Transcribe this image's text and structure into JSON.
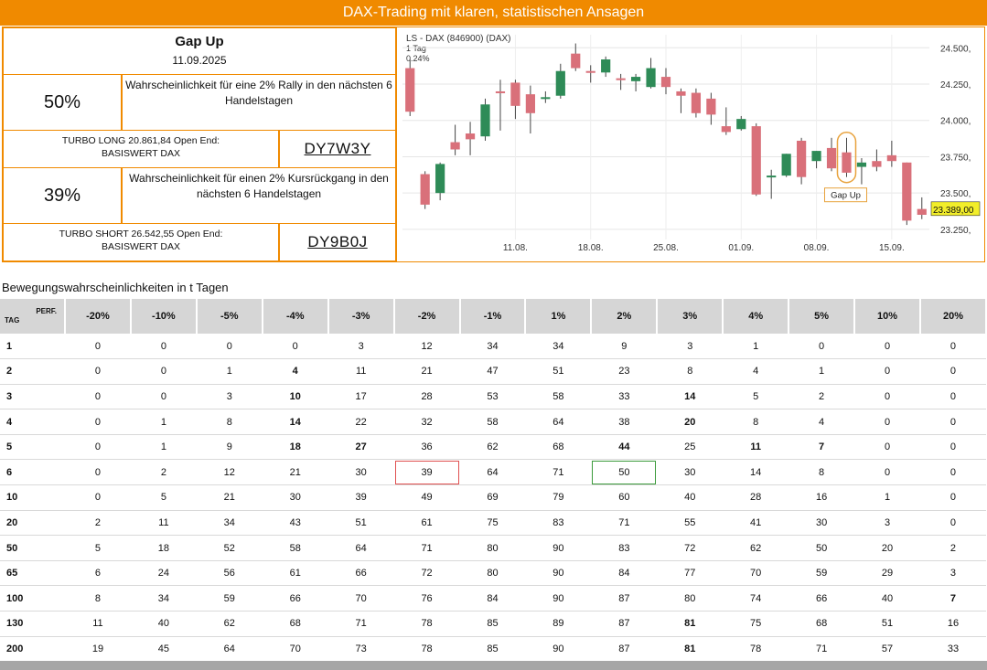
{
  "banner": {
    "title": "DAX-Trading mit klaren, statistischen Ansagen",
    "color": "#f08a00"
  },
  "panel": {
    "title": "Gap Up",
    "date": "11.09.2025",
    "up_pct": "50%",
    "up_desc": "Wahrscheinlichkeit für eine 2% Rally in den nächsten 6 Handelstagen",
    "long_text_1": "TURBO LONG 20.861,84 Open End:",
    "long_text_2": "BASISWERT DAX",
    "long_code": "DY7W3Y",
    "down_pct": "39%",
    "down_desc": "Wahrscheinlichkeit für einen 2% Kursrückgang in den nächsten 6 Handelstagen",
    "short_text_1": "TURBO SHORT 26.542,55 Open End:",
    "short_text_2": "BASISWERT DAX",
    "short_code": "DY9B0J"
  },
  "chart_data": {
    "type": "candlestick",
    "header_1": "LS - DAX (846900) (DAX)",
    "header_2": "1 Tag",
    "header_3": "0.24%",
    "y_ticks": [
      "24.500,",
      "24.250,",
      "24.000,",
      "23.750,",
      "23.500,",
      "23.250,"
    ],
    "y_tick_values": [
      24500,
      24250,
      24000,
      23750,
      23500,
      23250
    ],
    "ylim": [
      23180,
      24590
    ],
    "x_ticks": [
      "11.08.",
      "18.08.",
      "25.08.",
      "01.09.",
      "08.09.",
      "15.09."
    ],
    "x_tick_index": [
      7,
      12,
      17,
      22,
      27,
      32
    ],
    "last_price_label": "23.389,00",
    "annotation": "Gap Up",
    "annotation_index": 29,
    "up_color": "#2e8b57",
    "down_color": "#d9707a",
    "candles": [
      {
        "o": 24360,
        "h": 24420,
        "l": 24030,
        "c": 24060
      },
      {
        "o": 23630,
        "h": 23650,
        "l": 23390,
        "c": 23420
      },
      {
        "o": 23500,
        "h": 23710,
        "l": 23450,
        "c": 23700
      },
      {
        "o": 23850,
        "h": 23970,
        "l": 23760,
        "c": 23800
      },
      {
        "o": 23910,
        "h": 23990,
        "l": 23760,
        "c": 23870
      },
      {
        "o": 23890,
        "h": 24150,
        "l": 23860,
        "c": 24110
      },
      {
        "o": 24200,
        "h": 24280,
        "l": 23930,
        "c": 24190
      },
      {
        "o": 24260,
        "h": 24280,
        "l": 24010,
        "c": 24100
      },
      {
        "o": 24180,
        "h": 24240,
        "l": 23910,
        "c": 24050
      },
      {
        "o": 24150,
        "h": 24200,
        "l": 24120,
        "c": 24160
      },
      {
        "o": 24170,
        "h": 24390,
        "l": 24150,
        "c": 24340
      },
      {
        "o": 24460,
        "h": 24530,
        "l": 24340,
        "c": 24360
      },
      {
        "o": 24340,
        "h": 24380,
        "l": 24260,
        "c": 24330
      },
      {
        "o": 24330,
        "h": 24440,
        "l": 24300,
        "c": 24420
      },
      {
        "o": 24290,
        "h": 24320,
        "l": 24210,
        "c": 24280
      },
      {
        "o": 24270,
        "h": 24320,
        "l": 24200,
        "c": 24300
      },
      {
        "o": 24230,
        "h": 24430,
        "l": 24220,
        "c": 24360
      },
      {
        "o": 24300,
        "h": 24360,
        "l": 24180,
        "c": 24230
      },
      {
        "o": 24200,
        "h": 24220,
        "l": 24050,
        "c": 24170
      },
      {
        "o": 24190,
        "h": 24220,
        "l": 24020,
        "c": 24050
      },
      {
        "o": 24150,
        "h": 24190,
        "l": 23970,
        "c": 24040
      },
      {
        "o": 23960,
        "h": 24090,
        "l": 23900,
        "c": 23920
      },
      {
        "o": 23940,
        "h": 24030,
        "l": 23930,
        "c": 24010
      },
      {
        "o": 23960,
        "h": 23980,
        "l": 23480,
        "c": 23490
      },
      {
        "o": 23610,
        "h": 23660,
        "l": 23460,
        "c": 23620
      },
      {
        "o": 23620,
        "h": 23770,
        "l": 23610,
        "c": 23770
      },
      {
        "o": 23860,
        "h": 23880,
        "l": 23560,
        "c": 23610
      },
      {
        "o": 23720,
        "h": 23790,
        "l": 23670,
        "c": 23790
      },
      {
        "o": 23810,
        "h": 23880,
        "l": 23650,
        "c": 23670
      },
      {
        "o": 23780,
        "h": 23880,
        "l": 23610,
        "c": 23640
      },
      {
        "o": 23680,
        "h": 23740,
        "l": 23560,
        "c": 23710
      },
      {
        "o": 23720,
        "h": 23800,
        "l": 23650,
        "c": 23680
      },
      {
        "o": 23760,
        "h": 23860,
        "l": 23680,
        "c": 23720
      },
      {
        "o": 23710,
        "h": 23710,
        "l": 23280,
        "c": 23310
      },
      {
        "o": 23390,
        "h": 23470,
        "l": 23320,
        "c": 23350
      }
    ]
  },
  "table": {
    "section_label": "Bewegungswahrscheinlichkeiten in t Tagen",
    "corner_perf": "PERF.",
    "corner_tag": "TAG",
    "headers": [
      "-20%",
      "-10%",
      "-5%",
      "-4%",
      "-3%",
      "-2%",
      "-1%",
      "1%",
      "2%",
      "3%",
      "4%",
      "5%",
      "10%",
      "20%"
    ],
    "rows": [
      {
        "tag": "1",
        "values": [
          "0",
          "0",
          "0",
          "0",
          "3",
          "12",
          "34",
          "34",
          "9",
          "3",
          "1",
          "0",
          "0",
          "0"
        ]
      },
      {
        "tag": "2",
        "values": [
          "0",
          "0",
          "1",
          "4",
          "11",
          "21",
          "47",
          "51",
          "23",
          "8",
          "4",
          "1",
          "0",
          "0"
        ]
      },
      {
        "tag": "3",
        "values": [
          "0",
          "0",
          "3",
          "10",
          "17",
          "28",
          "53",
          "58",
          "33",
          "14",
          "5",
          "2",
          "0",
          "0"
        ]
      },
      {
        "tag": "4",
        "values": [
          "0",
          "1",
          "8",
          "14",
          "22",
          "32",
          "58",
          "64",
          "38",
          "20",
          "8",
          "4",
          "0",
          "0"
        ]
      },
      {
        "tag": "5",
        "values": [
          "0",
          "1",
          "9",
          "18",
          "27",
          "36",
          "62",
          "68",
          "44",
          "25",
          "11",
          "7",
          "0",
          "0"
        ]
      },
      {
        "tag": "6",
        "values": [
          "0",
          "2",
          "12",
          "21",
          "30",
          "39",
          "64",
          "71",
          "50",
          "30",
          "14",
          "8",
          "0",
          "0"
        ]
      },
      {
        "tag": "10",
        "values": [
          "0",
          "5",
          "21",
          "30",
          "39",
          "49",
          "69",
          "79",
          "60",
          "40",
          "28",
          "16",
          "1",
          "0"
        ]
      },
      {
        "tag": "20",
        "values": [
          "2",
          "11",
          "34",
          "43",
          "51",
          "61",
          "75",
          "83",
          "71",
          "55",
          "41",
          "30",
          "3",
          "0"
        ]
      },
      {
        "tag": "50",
        "values": [
          "5",
          "18",
          "52",
          "58",
          "64",
          "71",
          "80",
          "90",
          "83",
          "72",
          "62",
          "50",
          "20",
          "2"
        ]
      },
      {
        "tag": "65",
        "values": [
          "6",
          "24",
          "56",
          "61",
          "66",
          "72",
          "80",
          "90",
          "84",
          "77",
          "70",
          "59",
          "29",
          "3"
        ]
      },
      {
        "tag": "100",
        "values": [
          "8",
          "34",
          "59",
          "66",
          "70",
          "76",
          "84",
          "90",
          "87",
          "80",
          "74",
          "66",
          "40",
          "7"
        ]
      },
      {
        "tag": "130",
        "values": [
          "11",
          "40",
          "62",
          "68",
          "71",
          "78",
          "85",
          "89",
          "87",
          "81",
          "75",
          "68",
          "51",
          "16"
        ]
      },
      {
        "tag": "200",
        "values": [
          "19",
          "45",
          "64",
          "70",
          "73",
          "78",
          "85",
          "90",
          "87",
          "81",
          "78",
          "71",
          "57",
          "33"
        ]
      }
    ],
    "bold_cells": [
      [
        1,
        3
      ],
      [
        2,
        3
      ],
      [
        3,
        3
      ],
      [
        4,
        3
      ],
      [
        4,
        4
      ],
      [
        4,
        8
      ],
      [
        4,
        10
      ],
      [
        4,
        11
      ],
      [
        3,
        9
      ],
      [
        2,
        9
      ],
      [
        11,
        9
      ],
      [
        12,
        9
      ],
      [
        10,
        13
      ]
    ],
    "highlight_red": [
      5,
      5
    ],
    "highlight_green": [
      5,
      8
    ]
  }
}
